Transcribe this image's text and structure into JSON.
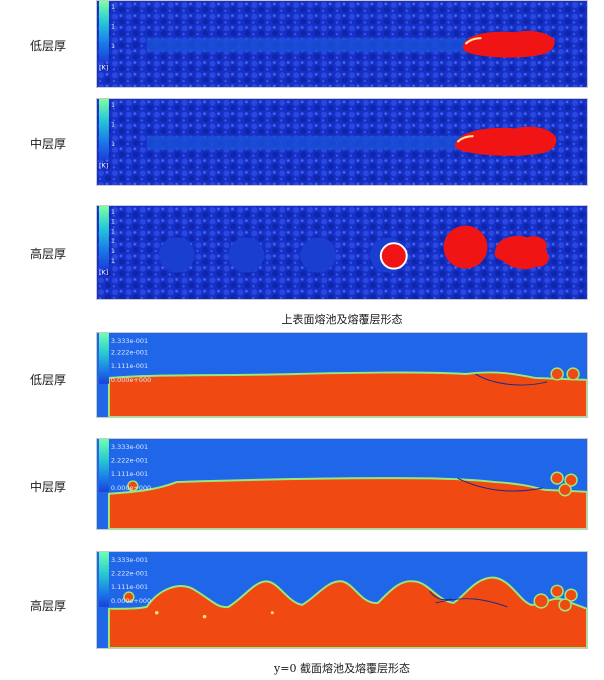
{
  "groups": {
    "top": {
      "caption": "上表面熔池及熔覆层形态",
      "rows": [
        {
          "label": "低层厚",
          "legend_ticks": [
            "1",
            "1",
            "1"
          ],
          "unit": "[K]"
        },
        {
          "label": "中层厚",
          "legend_ticks": [
            "1",
            "1",
            "1"
          ],
          "unit": "[K]"
        },
        {
          "label": "高层厚",
          "legend_ticks": [
            "1",
            "1",
            "1",
            "1",
            "1",
            "1"
          ],
          "unit": "[K]"
        }
      ]
    },
    "section": {
      "caption": "y=0 截面熔池及熔覆层形态",
      "rows": [
        {
          "label": "低层厚",
          "legend_ticks": [
            "3.333e-001",
            "2.222e-001",
            "1.111e-001",
            "0.000e+000"
          ]
        },
        {
          "label": "中层厚",
          "legend_ticks": [
            "3.333e-001",
            "2.222e-001",
            "1.111e-001",
            "0.000e+000"
          ]
        },
        {
          "label": "高层厚",
          "legend_ticks": [
            "3.333e-001",
            "2.222e-001",
            "1.111e-001",
            "0.000e+000"
          ]
        }
      ]
    }
  },
  "colors": {
    "substrate_blue": "#1530c8",
    "track_blue": "#1a4fd8",
    "melt_red": "#f01414",
    "gas_blue": "#1f66e8",
    "metal_orange": "#f04a12",
    "interface_green": "#9be87a"
  }
}
